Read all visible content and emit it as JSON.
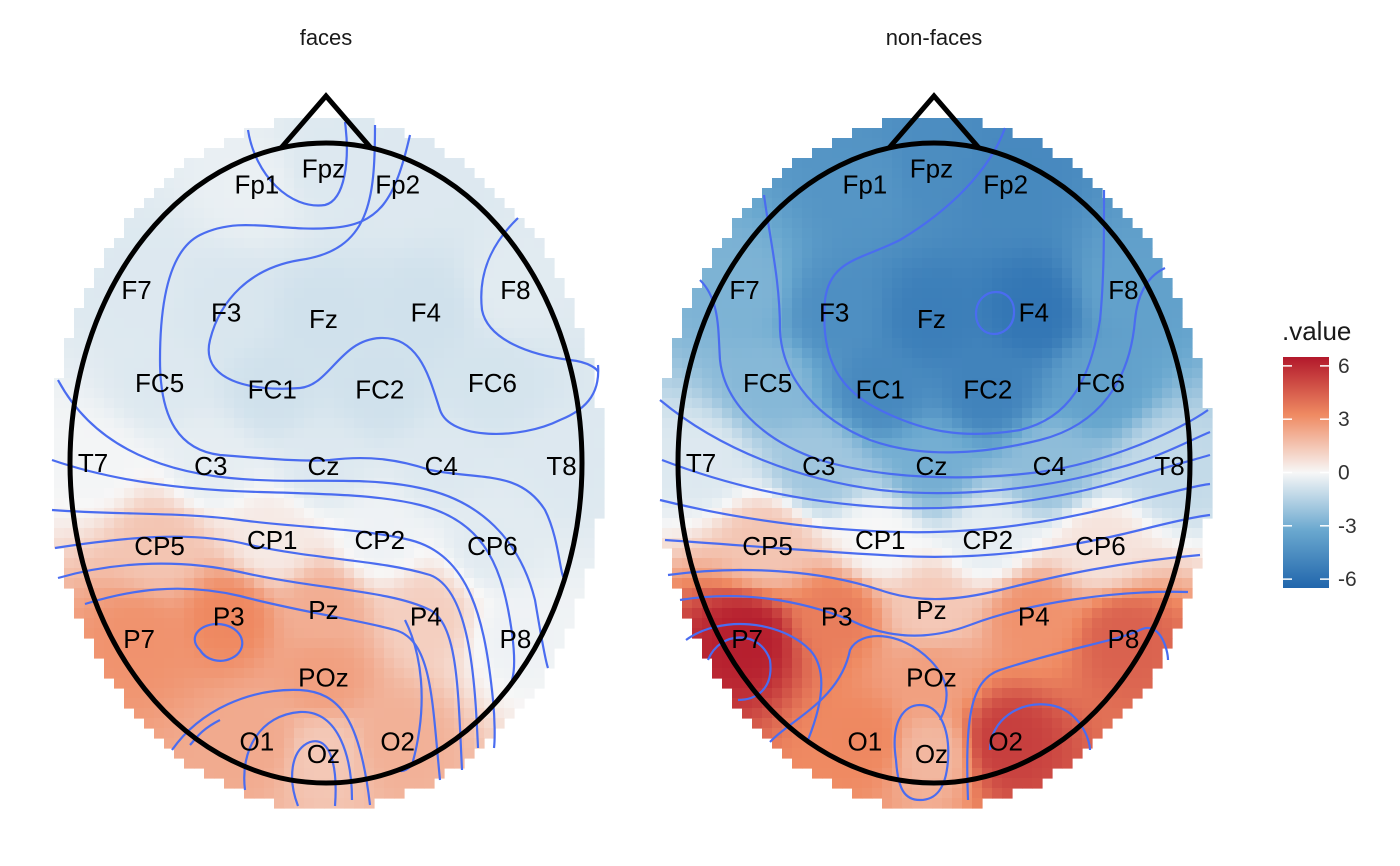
{
  "chart_data": {
    "type": "heatmap",
    "subtype": "eeg-topoplot",
    "panels": [
      {
        "title": "faces",
        "electrodes": [
          {
            "label": "Fp1",
            "value": -0.3
          },
          {
            "label": "Fpz",
            "value": -0.6
          },
          {
            "label": "Fp2",
            "value": -0.6
          },
          {
            "label": "F7",
            "value": -0.6
          },
          {
            "label": "F3",
            "value": -0.7
          },
          {
            "label": "Fz",
            "value": -0.9
          },
          {
            "label": "F4",
            "value": -0.9
          },
          {
            "label": "F8",
            "value": -0.5
          },
          {
            "label": "FC5",
            "value": -0.6
          },
          {
            "label": "FC1",
            "value": -0.9
          },
          {
            "label": "FC2",
            "value": -0.9
          },
          {
            "label": "FC6",
            "value": -0.8
          },
          {
            "label": "T7",
            "value": -0.1
          },
          {
            "label": "C3",
            "value": -0.4
          },
          {
            "label": "Cz",
            "value": -0.6
          },
          {
            "label": "C4",
            "value": -0.6
          },
          {
            "label": "T8",
            "value": -0.6
          },
          {
            "label": "CP5",
            "value": 1.5
          },
          {
            "label": "CP1",
            "value": 0.4
          },
          {
            "label": "CP2",
            "value": -0.2
          },
          {
            "label": "CP6",
            "value": -0.5
          },
          {
            "label": "P7",
            "value": 3.0
          },
          {
            "label": "P3",
            "value": 3.3
          },
          {
            "label": "Pz",
            "value": 2.2
          },
          {
            "label": "P4",
            "value": 1.2
          },
          {
            "label": "P8",
            "value": -0.2
          },
          {
            "label": "POz",
            "value": 2.6
          },
          {
            "label": "O1",
            "value": 2.3
          },
          {
            "label": "Oz",
            "value": 1.4
          },
          {
            "label": "O2",
            "value": 2.1
          }
        ]
      },
      {
        "title": "non-faces",
        "electrodes": [
          {
            "label": "Fp1",
            "value": -4.2
          },
          {
            "label": "Fpz",
            "value": -4.6
          },
          {
            "label": "Fp2",
            "value": -4.8
          },
          {
            "label": "F7",
            "value": -2.8
          },
          {
            "label": "F3",
            "value": -4.5
          },
          {
            "label": "Fz",
            "value": -5.3
          },
          {
            "label": "F4",
            "value": -5.7
          },
          {
            "label": "F8",
            "value": -3.6
          },
          {
            "label": "FC5",
            "value": -2.6
          },
          {
            "label": "FC1",
            "value": -4.8
          },
          {
            "label": "FC2",
            "value": -5.1
          },
          {
            "label": "FC6",
            "value": -3.6
          },
          {
            "label": "T7",
            "value": -0.6
          },
          {
            "label": "C3",
            "value": -2.0
          },
          {
            "label": "Cz",
            "value": -3.0
          },
          {
            "label": "C4",
            "value": -2.4
          },
          {
            "label": "T8",
            "value": -1.2
          },
          {
            "label": "CP5",
            "value": 1.5
          },
          {
            "label": "CP1",
            "value": 0.0
          },
          {
            "label": "CP2",
            "value": -0.4
          },
          {
            "label": "CP6",
            "value": 0.6
          },
          {
            "label": "P7",
            "value": 6.3
          },
          {
            "label": "P3",
            "value": 3.6
          },
          {
            "label": "Pz",
            "value": 1.4
          },
          {
            "label": "P4",
            "value": 3.0
          },
          {
            "label": "P8",
            "value": 4.4
          },
          {
            "label": "POz",
            "value": 2.6
          },
          {
            "label": "O1",
            "value": 3.3
          },
          {
            "label": "Oz",
            "value": 1.9
          },
          {
            "label": "O2",
            "value": 5.4
          }
        ]
      }
    ],
    "legend": {
      "title": ".value",
      "ticks": [
        6,
        3,
        0,
        -3,
        -6
      ],
      "tick_labels": [
        "6",
        "3",
        "0",
        "-3",
        "-6"
      ],
      "range": [
        -6.5,
        6.5
      ],
      "placement": "right"
    },
    "colors": {
      "negative_max": "#2166ac",
      "neutral": "#f7f7f7",
      "positive_max": "#b2182b",
      "contour": "#4a6cf0",
      "head_outline": "#000000"
    }
  }
}
